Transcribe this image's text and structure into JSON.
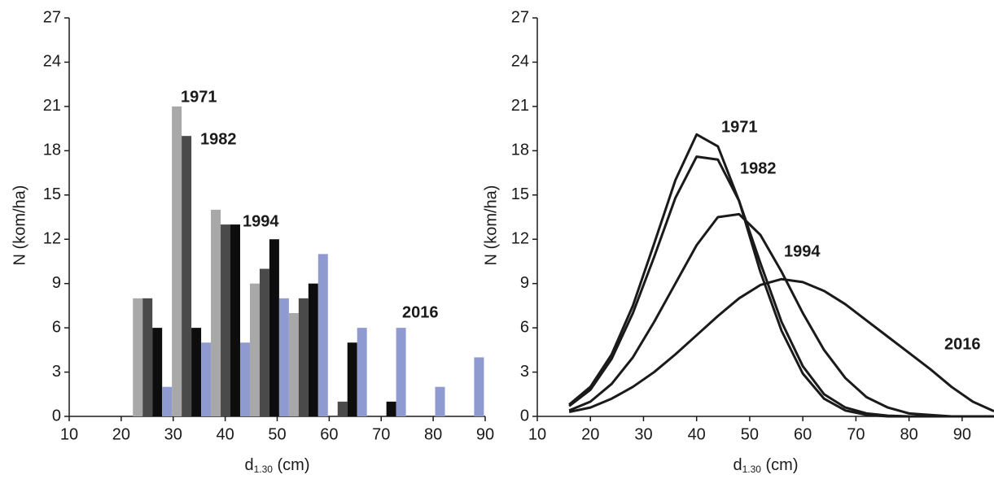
{
  "chart_data": [
    {
      "type": "bar",
      "xlabel": {
        "main": "d",
        "sub": "1.30",
        "unit": "(cm)"
      },
      "ylabel": "N (kom/ha)",
      "x": [
        26,
        33.5,
        41,
        48.5,
        56,
        63.5,
        71,
        78.5,
        86
      ],
      "series": [
        {
          "name": "1971",
          "color": "#a8a8a8",
          "values": [
            8,
            21,
            14,
            9,
            7,
            0,
            0,
            0,
            0
          ]
        },
        {
          "name": "1982",
          "color": "#4a4a4a",
          "values": [
            8,
            19,
            13,
            10,
            8,
            1,
            0,
            0,
            0
          ]
        },
        {
          "name": "1994",
          "color": "#0d0d0d",
          "values": [
            6,
            6,
            13,
            12,
            9,
            5,
            1,
            0,
            0
          ]
        },
        {
          "name": "2016",
          "color": "#8e9ad0",
          "values": [
            2,
            5,
            5,
            8,
            11,
            6,
            6,
            2,
            4
          ]
        }
      ],
      "xlim": [
        10,
        90
      ],
      "xticks": [
        10,
        20,
        30,
        40,
        50,
        60,
        70,
        80,
        90
      ],
      "ylim": [
        0,
        27
      ],
      "yticks": [
        0,
        3,
        6,
        9,
        12,
        15,
        18,
        21,
        24,
        27
      ]
    },
    {
      "type": "line",
      "xlabel": {
        "main": "d",
        "sub": "1.30",
        "unit": "(cm)"
      },
      "ylabel": "N (kom/ha)",
      "x": [
        16,
        20,
        24,
        28,
        32,
        36,
        40,
        44,
        48,
        52,
        56,
        60,
        64,
        68,
        72,
        76,
        80,
        84,
        88,
        92,
        96
      ],
      "series": [
        {
          "name": "1971",
          "color": "#1a1a1a",
          "values": [
            0.8,
            2.0,
            4.2,
            7.5,
            11.7,
            16.0,
            19.1,
            18.3,
            14.6,
            9.8,
            5.8,
            2.9,
            1.2,
            0.4,
            0.1,
            0,
            0,
            0,
            0,
            0,
            0
          ]
        },
        {
          "name": "1982",
          "color": "#1a1a1a",
          "values": [
            0.7,
            1.8,
            3.9,
            7.0,
            10.8,
            14.8,
            17.6,
            17.4,
            14.6,
            10.4,
            6.4,
            3.4,
            1.5,
            0.6,
            0.2,
            0.05,
            0,
            0,
            0,
            0,
            0
          ]
        },
        {
          "name": "1994",
          "color": "#1a1a1a",
          "values": [
            0.4,
            1.0,
            2.2,
            4.0,
            6.4,
            9.0,
            11.6,
            13.5,
            13.7,
            12.3,
            9.8,
            7.0,
            4.5,
            2.6,
            1.3,
            0.6,
            0.2,
            0.1,
            0,
            0,
            0
          ]
        },
        {
          "name": "2016",
          "color": "#1a1a1a",
          "values": [
            0.3,
            0.6,
            1.2,
            2.0,
            3.0,
            4.2,
            5.5,
            6.8,
            8.0,
            8.9,
            9.3,
            9.1,
            8.5,
            7.6,
            6.5,
            5.4,
            4.3,
            3.2,
            2.0,
            1.0,
            0.35
          ]
        }
      ],
      "xlim": [
        10,
        96
      ],
      "xticks": [
        10,
        20,
        30,
        40,
        50,
        60,
        70,
        80,
        90
      ],
      "ylim": [
        0,
        27
      ],
      "yticks": [
        0,
        3,
        6,
        9,
        12,
        15,
        18,
        21,
        24,
        27
      ]
    }
  ]
}
